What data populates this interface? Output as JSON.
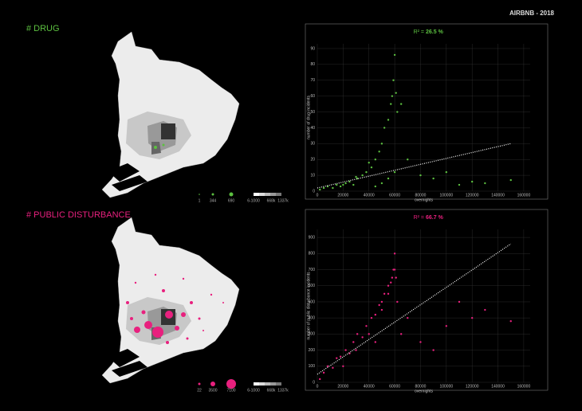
{
  "header": {
    "title": "AIRBNB - 2018"
  },
  "panels": [
    {
      "heading": "# DRUG",
      "legend": [
        "1",
        "344",
        "690",
        "6-1000",
        "668k",
        "1337k"
      ]
    },
    {
      "heading": "# PUBLIC DISTURBANCE",
      "legend": [
        "22",
        "3500",
        "7100",
        "6-1000",
        "668k",
        "1337k"
      ]
    }
  ],
  "chart_data": [
    {
      "type": "scatter",
      "r2_label": "R² =",
      "r2_value": "26.5 %",
      "x_label": "overnights",
      "y_label": "number of drug incidents",
      "color": "#5cc040",
      "xlim": [
        0,
        165000
      ],
      "xticks": [
        0,
        20000,
        40000,
        60000,
        80000,
        100000,
        120000,
        140000,
        160000
      ],
      "ylim": [
        0,
        93
      ],
      "yticks": [
        0,
        10,
        20,
        30,
        40,
        50,
        60,
        70,
        80,
        90
      ],
      "grid": true,
      "x": [
        2000,
        5000,
        8000,
        12000,
        15000,
        18000,
        22000,
        25000,
        28000,
        31000,
        35000,
        38000,
        42000,
        45000,
        48000,
        50000,
        52000,
        55000,
        57000,
        58000,
        59000,
        60000,
        61000,
        62000,
        45000,
        50000,
        55000,
        60000,
        65000,
        70000,
        80000,
        90000,
        100000,
        110000,
        120000,
        130000,
        150000,
        40000,
        30000,
        20000
      ],
      "y": [
        1,
        2,
        3,
        2,
        4,
        3,
        5,
        6,
        4,
        8,
        10,
        12,
        15,
        20,
        25,
        30,
        40,
        45,
        55,
        60,
        70,
        86,
        62,
        50,
        3,
        5,
        8,
        12,
        55,
        20,
        10,
        8,
        12,
        4,
        6,
        5,
        7,
        18,
        9,
        4
      ],
      "trendline": {
        "x": [
          0,
          150000
        ],
        "y": [
          2,
          30
        ]
      }
    },
    {
      "type": "scatter",
      "r2_label": "R² =",
      "r2_value": "66.7 %",
      "x_label": "overnights",
      "y_label": "number of public disturbance incidents",
      "color": "#e8207e",
      "xlim": [
        0,
        165000
      ],
      "xticks": [
        0,
        20000,
        40000,
        60000,
        80000,
        100000,
        120000,
        140000,
        160000
      ],
      "ylim": [
        0,
        950
      ],
      "yticks": [
        0,
        100,
        200,
        300,
        400,
        500,
        600,
        700,
        800,
        900
      ],
      "grid": true,
      "x": [
        2000,
        5000,
        8000,
        12000,
        15000,
        18000,
        22000,
        25000,
        28000,
        31000,
        35000,
        38000,
        42000,
        45000,
        48000,
        50000,
        52000,
        55000,
        57000,
        58000,
        59000,
        60000,
        61000,
        62000,
        45000,
        50000,
        55000,
        60000,
        65000,
        70000,
        80000,
        90000,
        100000,
        110000,
        120000,
        130000,
        150000,
        40000,
        30000,
        20000
      ],
      "y": [
        20,
        60,
        100,
        90,
        150,
        160,
        200,
        180,
        250,
        300,
        280,
        350,
        400,
        420,
        480,
        500,
        550,
        600,
        620,
        650,
        700,
        800,
        650,
        500,
        250,
        450,
        550,
        700,
        300,
        400,
        250,
        200,
        350,
        500,
        400,
        450,
        380,
        300,
        200,
        100
      ],
      "trendline": {
        "x": [
          0,
          150000
        ],
        "y": [
          50,
          860
        ]
      }
    }
  ]
}
